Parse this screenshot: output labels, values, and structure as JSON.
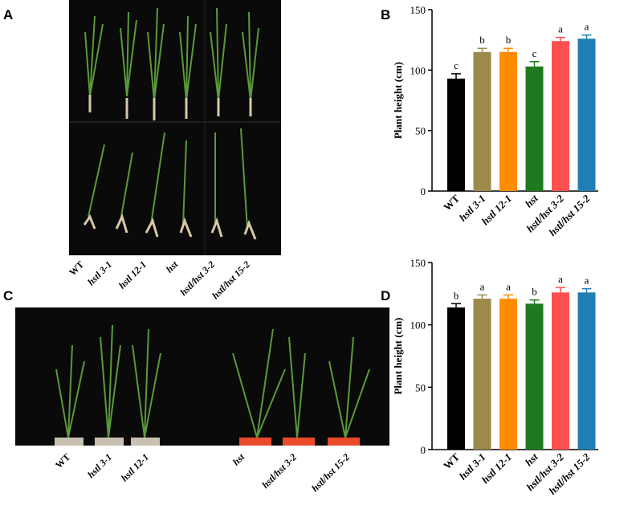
{
  "panels": {
    "a": "A",
    "b": "B",
    "c": "C",
    "d": "D"
  },
  "photo_a_labels": [
    "WT",
    "hstl 3-1",
    "hstl 12-1",
    "hst",
    "hstl/hst 3-2",
    "hstl/hst 15-2"
  ],
  "photo_c_labels": [
    "WT",
    "hstl 3-1",
    "hstl 12-1",
    "hst",
    "hstl/hst 3-2",
    "hstl/hst 15-2"
  ],
  "chart_data": [
    {
      "type": "bar",
      "ylabel": "Plant height (cm)",
      "categories": [
        "WT",
        "hstl 3-1",
        "hstl 12-1",
        "hst",
        "hstl/hst 3-2",
        "hstl/hst 15-2"
      ],
      "values": [
        93,
        115,
        115,
        103,
        124,
        126
      ],
      "errors": [
        4,
        3,
        3,
        4,
        3,
        3
      ],
      "annotations": [
        "c",
        "b",
        "b",
        "c",
        "a",
        "a"
      ],
      "colors": [
        "#000000",
        "#9c8a4a",
        "#ff8c00",
        "#1e7a1e",
        "#ff5050",
        "#1f7fb5"
      ],
      "ylim": [
        0,
        150
      ],
      "yticks": [
        0,
        50,
        100,
        150
      ]
    },
    {
      "type": "bar",
      "ylabel": "Plant height (cm)",
      "categories": [
        "WT",
        "hstl 3-1",
        "hstl 12-1",
        "hst",
        "hstl/hst 3-2",
        "hstl/hst 15-2"
      ],
      "values": [
        114,
        121,
        121,
        117,
        126,
        126
      ],
      "errors": [
        3,
        3,
        3,
        3,
        4,
        3
      ],
      "annotations": [
        "b",
        "a",
        "a",
        "b",
        "a",
        "a"
      ],
      "colors": [
        "#000000",
        "#9c8a4a",
        "#ff8c00",
        "#1e7a1e",
        "#ff5050",
        "#1f7fb5"
      ],
      "ylim": [
        0,
        150
      ],
      "yticks": [
        0,
        50,
        100,
        150
      ]
    }
  ]
}
